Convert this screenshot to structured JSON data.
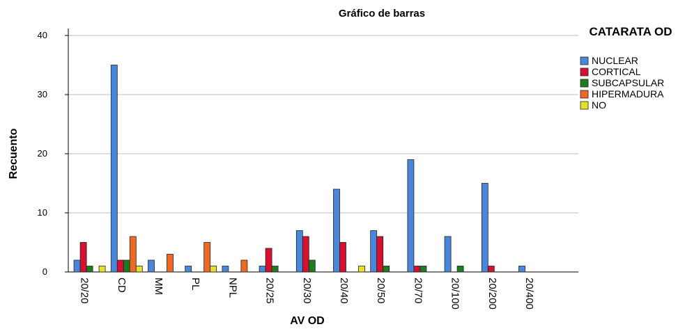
{
  "chart_data": {
    "type": "bar",
    "title": "Gráfico de barras",
    "x_label": "AV OD",
    "y_label": "Recuento",
    "legend_title": "CATARATA OD",
    "categories": [
      "20/20",
      "CD",
      "MM",
      "PL",
      "NPL",
      "20/25",
      "20/30",
      "20/40",
      "20/50",
      "20/70",
      "20/100",
      "20/200",
      "20/400"
    ],
    "series": [
      {
        "name": "NUCLEAR",
        "color": "#4a86d9",
        "values": [
          2,
          35,
          2,
          1,
          1,
          1,
          7,
          14,
          7,
          19,
          6,
          15,
          1
        ]
      },
      {
        "name": "CORTICAL",
        "color": "#d7102f",
        "values": [
          5,
          2,
          null,
          null,
          null,
          4,
          6,
          5,
          6,
          1,
          null,
          1,
          null
        ]
      },
      {
        "name": "SUBCAPSULAR",
        "color": "#1e7b1e",
        "values": [
          1,
          2,
          null,
          null,
          null,
          1,
          2,
          null,
          1,
          1,
          1,
          null,
          null
        ]
      },
      {
        "name": "HIPERMADURA",
        "color": "#ee6a24",
        "values": [
          null,
          6,
          3,
          5,
          2,
          null,
          null,
          null,
          null,
          null,
          null,
          null,
          null
        ]
      },
      {
        "name": "NO",
        "color": "#e7e02a",
        "values": [
          1,
          1,
          null,
          1,
          null,
          null,
          null,
          1,
          null,
          null,
          null,
          null,
          null
        ]
      }
    ],
    "ylim": [
      0,
      40
    ],
    "yticks": [
      0,
      10,
      20,
      30,
      40
    ],
    "grid": true
  }
}
